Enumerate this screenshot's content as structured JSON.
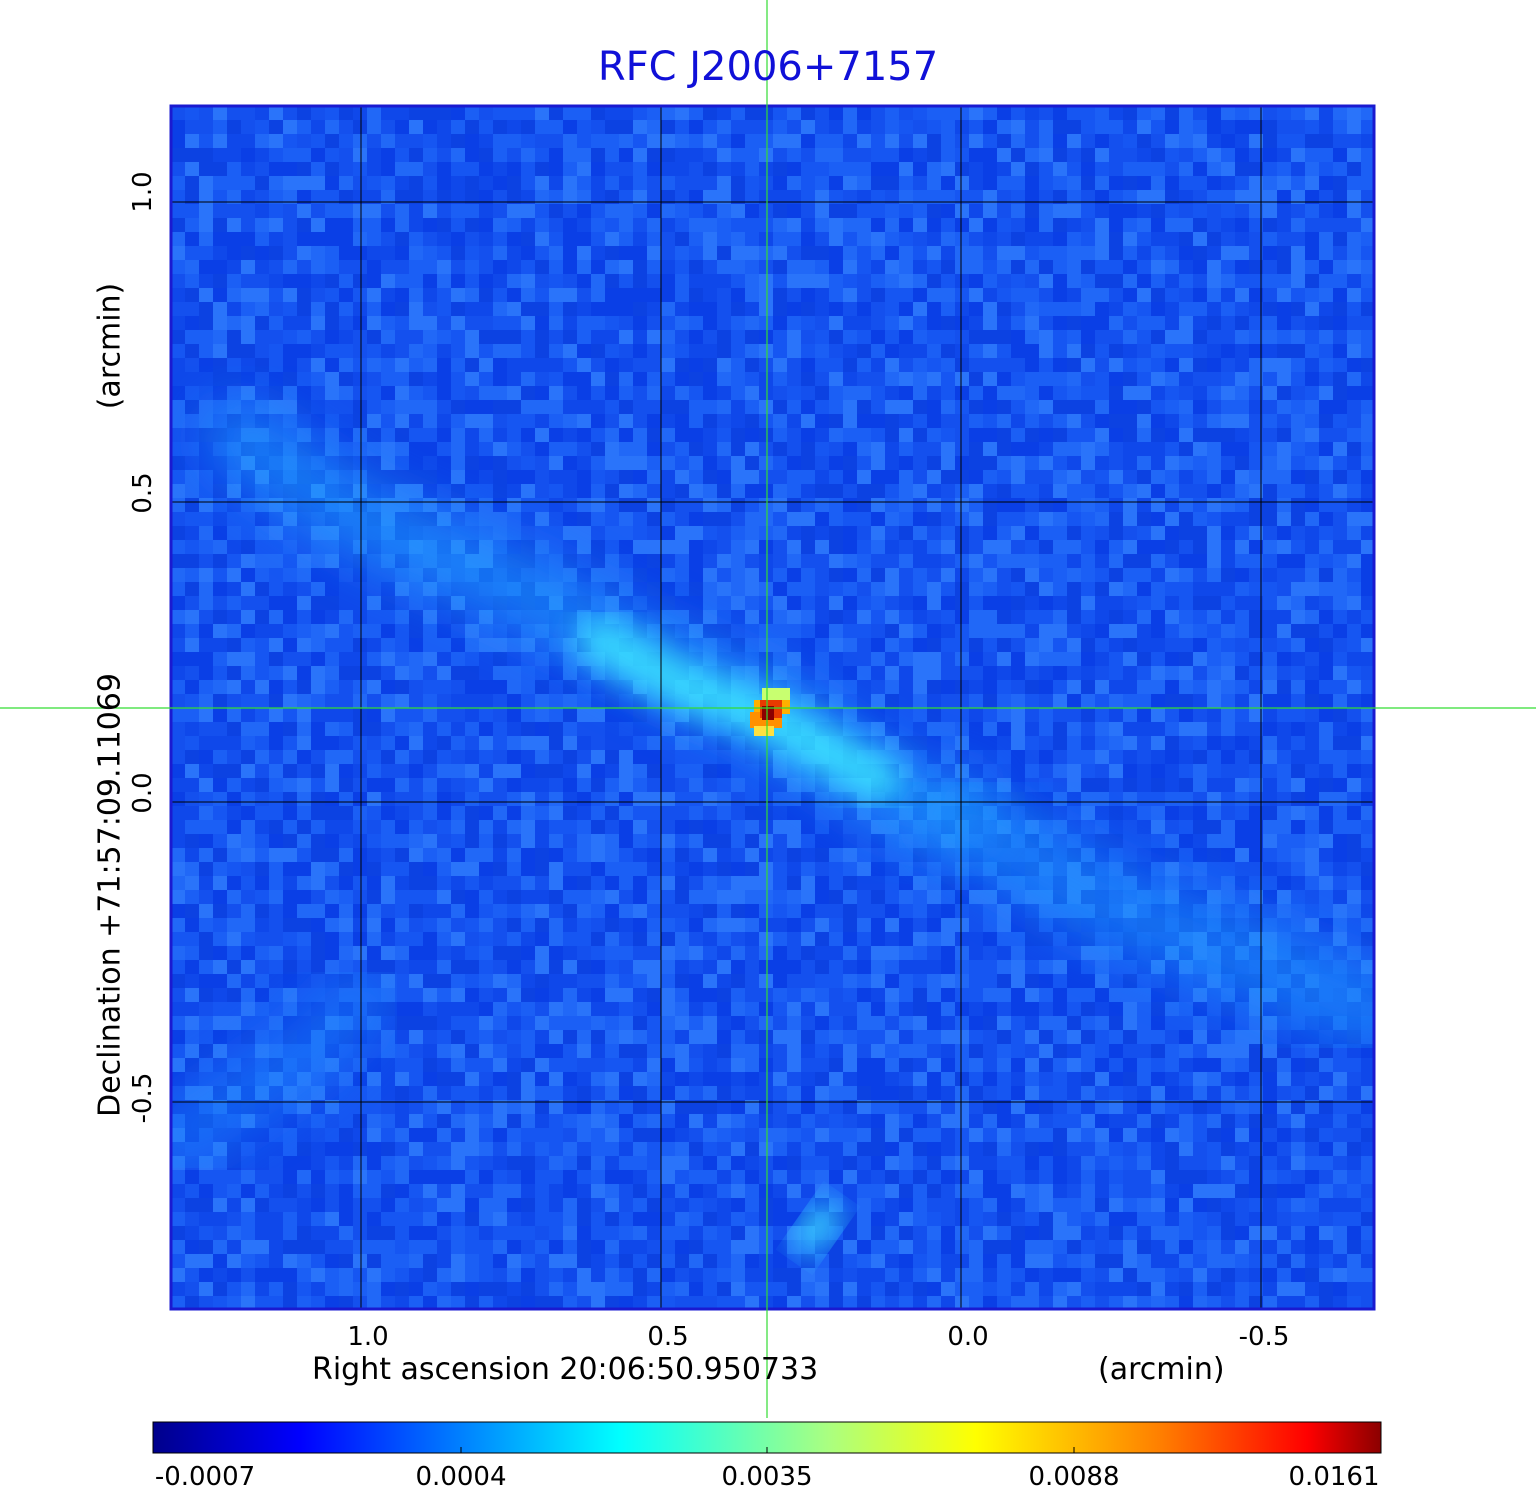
{
  "title": "RFC J2006+7157",
  "x_axis": {
    "label": "Right ascension  20:06:50.950733",
    "unit": "(arcmin)",
    "ticks": [
      "1.0",
      "0.5",
      "0.0",
      "-0.5"
    ]
  },
  "y_axis": {
    "label": "Declination  +71:57:09.11069",
    "unit": "(arcmin)",
    "ticks": [
      "1.0",
      "0.5",
      "0.0",
      "-0.5"
    ]
  },
  "colorbar": {
    "ticks": [
      "-0.0007",
      "0.0004",
      "0.0035",
      "0.0088",
      "0.0161"
    ],
    "colormap": [
      "#00008b",
      "#0000ff",
      "#00ffff",
      "#ffff00",
      "#ff0000",
      "#8b0000"
    ]
  },
  "colors": {
    "title": "#1010d8",
    "frame": "#1a1ad0",
    "crosshair": "#33dd33",
    "grid": "#000000"
  },
  "chart_data": {
    "type": "heatmap",
    "title": "RFC J2006+7157",
    "xlabel": "Right ascension  20:06:50.950733 (arcmin)",
    "ylabel": "Declination  +71:57:09.11069 (arcmin)",
    "xlim": [
      1.32,
      -0.69
    ],
    "ylim": [
      -0.84,
      1.16
    ],
    "x_gridlines": [
      1.0,
      0.5,
      0.0,
      -0.5
    ],
    "y_gridlines": [
      1.0,
      0.5,
      0.0,
      -0.5
    ],
    "grid": true,
    "crosshair": {
      "x": 0.32,
      "y": 0.16
    },
    "value_range": [
      -0.0007,
      0.0161
    ],
    "background_level": 0.0002,
    "peak": {
      "x": 0.32,
      "y": 0.15,
      "value": 0.0161
    },
    "features": [
      {
        "kind": "jet",
        "from": [
          1.15,
          0.55
        ],
        "to": [
          0.0,
          0.0
        ],
        "level": 0.0012
      },
      {
        "kind": "jet",
        "from": [
          0.0,
          0.0
        ],
        "to": [
          -0.65,
          -0.35
        ],
        "level": 0.0008
      },
      {
        "kind": "blob",
        "at": [
          0.24,
          -0.71
        ],
        "level": 0.0015
      }
    ]
  }
}
